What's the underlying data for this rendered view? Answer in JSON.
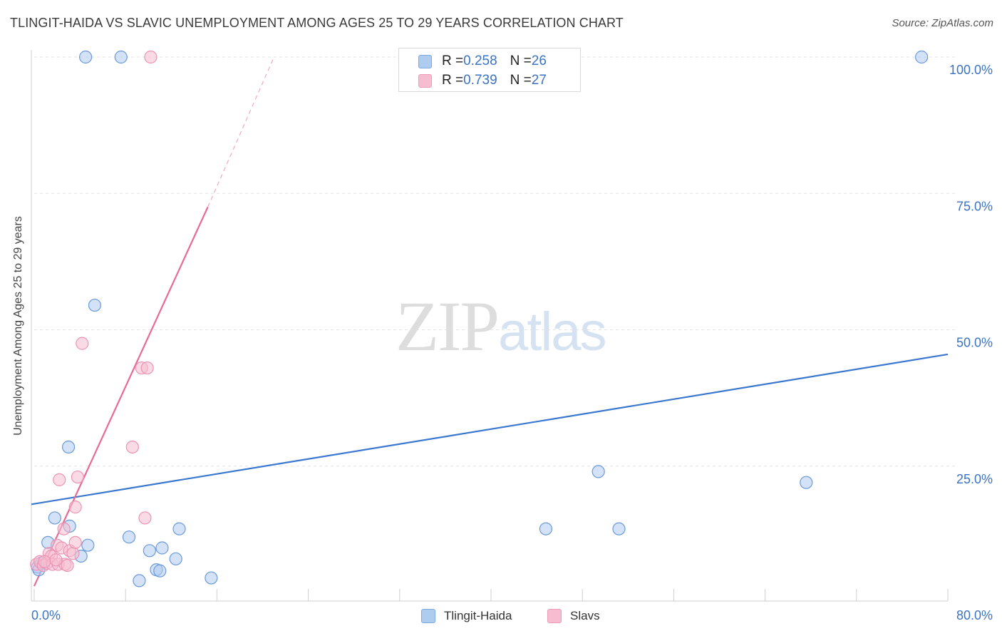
{
  "title": "TLINGIT-HAIDA VS SLAVIC UNEMPLOYMENT AMONG AGES 25 TO 29 YEARS CORRELATION CHART",
  "source": "Source: ZipAtlas.com",
  "watermark": {
    "zip": "ZIP",
    "atlas": "atlas"
  },
  "colors": {
    "blue": "#3a78d0",
    "blue_fill": "#aecbf0",
    "pink": "#e86a97",
    "pink_fill": "#f6bdd0",
    "axis_text": "#3b73c4",
    "grid": "#e3e3e3"
  },
  "legend_top": {
    "rows": [
      {
        "r_label": "R = ",
        "r_value": "0.258",
        "n_label": "N = ",
        "n_value": "26"
      },
      {
        "r_label": "R = ",
        "r_value": "0.739",
        "n_label": "N = ",
        "n_value": "27"
      }
    ]
  },
  "legend_bottom": {
    "items": [
      "Tlingit-Haida",
      "Slavs"
    ]
  },
  "chart_data": {
    "type": "scatter",
    "title": "TLINGIT-HAIDA VS SLAVIC UNEMPLOYMENT AMONG AGES 25 TO 29 YEARS CORRELATION CHART",
    "xlabel": "",
    "ylabel": "Unemployment Among Ages 25 to 29 years",
    "xlim": [
      0,
      80
    ],
    "ylim": [
      0,
      100
    ],
    "x_tick_labels": [
      "0.0%",
      "80.0%"
    ],
    "y_tick_labels": [
      "100.0%",
      "75.0%",
      "50.0%",
      "25.0%"
    ],
    "y_ticks": [
      100,
      75,
      50,
      25
    ],
    "x_minor_ticks": [
      0,
      8,
      16,
      24,
      32,
      40,
      48,
      56,
      64,
      72,
      80
    ],
    "series": [
      {
        "name": "Tlingit-Haida",
        "color": "#3a78d0",
        "R": 0.258,
        "N": 26,
        "points": [
          [
            0.3,
            6.5
          ],
          [
            0.6,
            7.2
          ],
          [
            1.2,
            11.0
          ],
          [
            1.8,
            15.5
          ],
          [
            3.0,
            28.5
          ],
          [
            3.1,
            14.0
          ],
          [
            4.1,
            8.5
          ],
          [
            4.5,
            100
          ],
          [
            4.7,
            10.5
          ],
          [
            5.3,
            54.5
          ],
          [
            7.6,
            100
          ],
          [
            8.3,
            12.0
          ],
          [
            9.2,
            4.0
          ],
          [
            10.1,
            9.5
          ],
          [
            10.7,
            6.0
          ],
          [
            11.0,
            5.8
          ],
          [
            11.2,
            10.0
          ],
          [
            12.4,
            8.0
          ],
          [
            12.7,
            13.5
          ],
          [
            15.5,
            4.5
          ],
          [
            44.8,
            13.5
          ],
          [
            49.4,
            24.0
          ],
          [
            51.2,
            13.5
          ],
          [
            67.6,
            22.0
          ],
          [
            77.7,
            100
          ],
          [
            0.4,
            6.0
          ]
        ],
        "trend": {
          "x": [
            0,
            80
          ],
          "y": [
            18.0,
            45.5
          ]
        }
      },
      {
        "name": "Slavs",
        "color": "#e86a97",
        "R": 0.739,
        "N": 27,
        "points": [
          [
            0.2,
            7.0
          ],
          [
            0.5,
            7.5
          ],
          [
            0.8,
            6.8
          ],
          [
            1.1,
            7.2
          ],
          [
            1.3,
            9.0
          ],
          [
            1.5,
            8.5
          ],
          [
            1.6,
            7.0
          ],
          [
            2.0,
            10.5
          ],
          [
            2.1,
            7.0
          ],
          [
            2.2,
            22.5
          ],
          [
            2.4,
            10.0
          ],
          [
            2.6,
            13.5
          ],
          [
            2.7,
            7.0
          ],
          [
            2.9,
            6.8
          ],
          [
            3.1,
            9.5
          ],
          [
            3.4,
            9.0
          ],
          [
            3.6,
            17.5
          ],
          [
            3.6,
            11.0
          ],
          [
            3.8,
            23.0
          ],
          [
            4.2,
            47.5
          ],
          [
            8.6,
            28.5
          ],
          [
            9.4,
            43.0
          ],
          [
            9.9,
            43.0
          ],
          [
            9.7,
            15.5
          ],
          [
            10.2,
            100
          ],
          [
            0.9,
            7.5
          ],
          [
            1.9,
            7.8
          ]
        ],
        "trend": {
          "x": [
            0,
            15.2
          ],
          "y": [
            3.0,
            72.5
          ]
        },
        "trend_dashed": {
          "x": [
            15.2,
            21.0
          ],
          "y": [
            72.5,
            100
          ]
        }
      }
    ]
  }
}
